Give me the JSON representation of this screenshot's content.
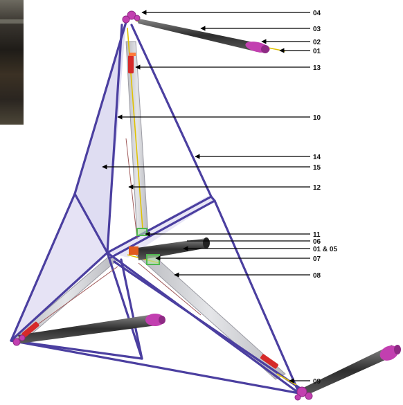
{
  "figure": {
    "callouts": [
      {
        "id": "c04",
        "text": "04"
      },
      {
        "id": "c03",
        "text": "03"
      },
      {
        "id": "c02",
        "text": "02"
      },
      {
        "id": "c01a",
        "text": "01"
      },
      {
        "id": "c13",
        "text": "13"
      },
      {
        "id": "c10",
        "text": "10"
      },
      {
        "id": "c14",
        "text": "14"
      },
      {
        "id": "c15",
        "text": "15"
      },
      {
        "id": "c12",
        "text": "12"
      },
      {
        "id": "c11",
        "text": "11"
      },
      {
        "id": "c06",
        "text": "06"
      },
      {
        "id": "c0105",
        "text": "01 & 05"
      },
      {
        "id": "c07",
        "text": "07"
      },
      {
        "id": "c08",
        "text": "08"
      },
      {
        "id": "c09",
        "text": "09"
      }
    ],
    "colors": {
      "frame": "#4b3fa0",
      "panel": "#c9c6e8",
      "member": "#cfd0d4",
      "actuator": "#3b3b3b",
      "cap": "#c23fb0",
      "red_part": "#d62a2a",
      "yellow_cable": "#e0c200",
      "green_part": "#4fb84f",
      "leader": "#000000"
    }
  }
}
